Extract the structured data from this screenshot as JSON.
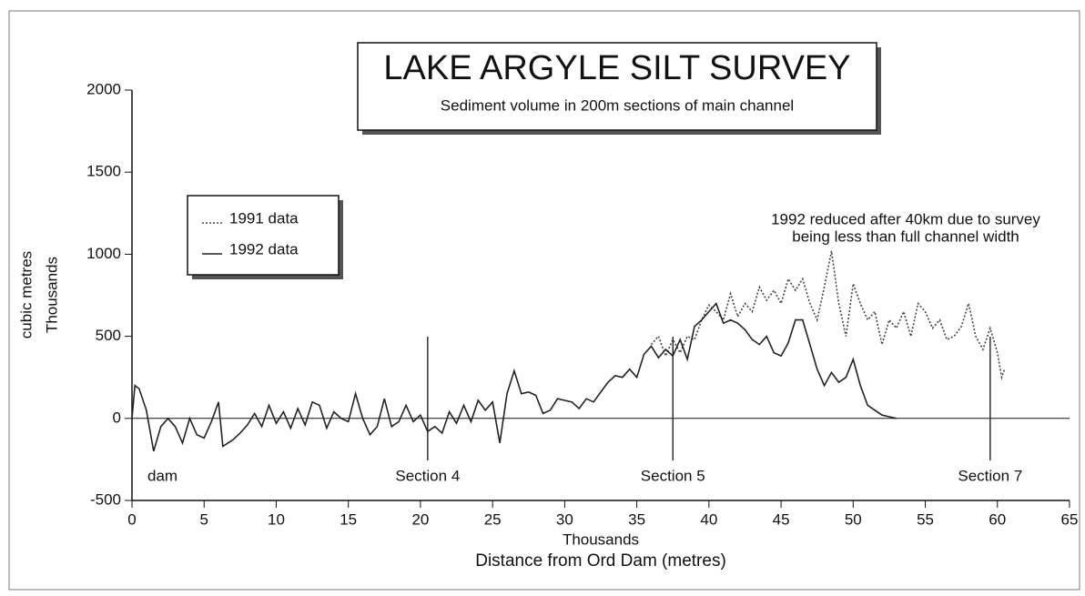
{
  "chart_data": {
    "type": "line",
    "title": "LAKE ARGYLE SILT SURVEY",
    "subtitle": "Sediment volume in 200m sections of main channel",
    "y_label": [
      "cubic metres",
      "Thousands"
    ],
    "x_label": [
      "Thousands",
      "Distance from Ord Dam (metres)"
    ],
    "annotation": [
      "1992 reduced after 40km  due to survey",
      "being less than full channel width"
    ],
    "dam_label": "dam",
    "markers": [
      {
        "label": "Section 4",
        "x": 20.5
      },
      {
        "label": "Section 5",
        "x": 37.5
      },
      {
        "label": "Section 7",
        "x": 59.5
      }
    ],
    "xlim": [
      0,
      65
    ],
    "xticks": [
      0,
      5,
      10,
      15,
      20,
      25,
      30,
      35,
      40,
      45,
      50,
      55,
      60,
      65
    ],
    "ylim": [
      -500,
      2000
    ],
    "yticks": [
      -500,
      0,
      500,
      1000,
      1500,
      2000
    ],
    "grid": false,
    "series": [
      {
        "name": "1991 data",
        "color": "#444444",
        "dash": "dotted",
        "x": [
          36,
          36.5,
          37,
          37.5,
          38,
          38.5,
          39,
          39.5,
          40,
          40.5,
          41,
          41.5,
          42,
          42.5,
          43,
          43.5,
          44,
          44.5,
          45,
          45.5,
          46,
          46.5,
          47,
          47.5,
          48,
          48.5,
          49,
          49.5,
          50,
          50.5,
          51,
          51.5,
          52,
          52.5,
          53,
          53.5,
          54,
          54.5,
          55,
          55.5,
          56,
          56.5,
          57,
          57.5,
          58,
          58.5,
          59,
          59.5,
          60,
          60.3,
          60.5
        ],
        "values": [
          450,
          500,
          380,
          480,
          400,
          500,
          480,
          600,
          690,
          650,
          600,
          760,
          620,
          700,
          650,
          800,
          720,
          780,
          700,
          850,
          780,
          850,
          700,
          600,
          800,
          1020,
          700,
          500,
          820,
          700,
          600,
          650,
          450,
          600,
          550,
          650,
          500,
          700,
          650,
          550,
          600,
          480,
          500,
          560,
          700,
          500,
          420,
          550,
          400,
          250,
          300
        ]
      },
      {
        "name": "1992 data",
        "color": "#222222",
        "dash": "solid",
        "x": [
          0,
          0.2,
          0.5,
          1,
          1.5,
          2,
          2.5,
          3,
          3.5,
          4,
          4.5,
          5,
          5.5,
          6,
          6.3,
          7,
          7.5,
          8,
          8.5,
          9,
          9.5,
          10,
          10.5,
          11,
          11.5,
          12,
          12.5,
          13,
          13.5,
          14,
          14.5,
          15,
          15.5,
          16,
          16.5,
          17,
          17.5,
          18,
          18.5,
          19,
          19.5,
          20,
          20.5,
          21,
          21.5,
          22,
          22.5,
          23,
          23.5,
          24,
          24.5,
          25,
          25.5,
          26,
          26.5,
          27,
          27.5,
          28,
          28.5,
          29,
          29.5,
          30,
          30.5,
          31,
          31.5,
          32,
          32.5,
          33,
          33.5,
          34,
          34.5,
          35,
          35.5,
          36,
          36.5,
          37,
          37.5,
          38,
          38.5,
          39,
          39.5,
          40,
          40.5,
          41,
          41.5,
          42,
          42.5,
          43,
          43.5,
          44,
          44.5,
          45,
          45.5,
          46,
          46.5,
          47,
          47.5,
          48,
          48.5,
          49,
          49.5,
          50,
          50.5,
          51,
          51.5,
          52,
          52.5,
          53
        ],
        "values": [
          0,
          200,
          180,
          50,
          -200,
          -50,
          0,
          -50,
          -150,
          0,
          -100,
          -120,
          -20,
          100,
          -170,
          -130,
          -90,
          -40,
          30,
          -50,
          80,
          -30,
          40,
          -60,
          60,
          -40,
          100,
          80,
          -60,
          40,
          0,
          -20,
          150,
          0,
          -100,
          -50,
          120,
          -50,
          -20,
          80,
          -20,
          20,
          -80,
          -50,
          -90,
          40,
          -30,
          80,
          -20,
          110,
          50,
          100,
          -150,
          150,
          290,
          150,
          160,
          140,
          30,
          50,
          120,
          110,
          100,
          60,
          120,
          100,
          160,
          220,
          260,
          250,
          300,
          250,
          390,
          440,
          370,
          420,
          380,
          480,
          360,
          560,
          600,
          650,
          700,
          580,
          600,
          580,
          540,
          480,
          450,
          500,
          400,
          380,
          460,
          600,
          600,
          450,
          300,
          200,
          280,
          220,
          250,
          360,
          200,
          80,
          50,
          20,
          10,
          0
        ]
      }
    ]
  }
}
